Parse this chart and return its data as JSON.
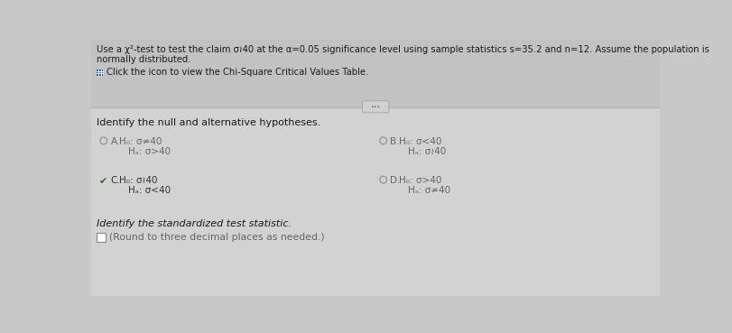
{
  "bg_top": "#c8c8c8",
  "bg_bottom": "#d8d8d8",
  "title_line1": "Use a χ²-test to test the claim σ≀40 at the α=0.05 significance level using sample statistics s=35.2 and n=12. Assume the population is",
  "title_line2": "normally distributed.",
  "icon_text": "Click the icon to view the Chi-Square Critical Values Table.",
  "section1": "Identify the null and alternative hypotheses.",
  "optA_label": "A.",
  "optA_h0": "H₀: σ≄40",
  "optA_ha": "Hₐ: σ>40",
  "optB_label": "B.",
  "optB_h0": "H₀: σ<40",
  "optB_ha": "Hₐ: σ≀40",
  "optC_label": "C.",
  "optC_h0": "H₀: σ≀40",
  "optC_ha": "Hₐ: σ<40",
  "optD_label": "D.",
  "optD_h0": "H₀: σ>40",
  "optD_ha": "Hₐ: σ≄40",
  "section2": "Identify the standardized test statistic.",
  "answer_box_text": "(Round to three decimal places as needed.)",
  "text_dark": "#1a1a1a",
  "text_gray": "#666666",
  "text_medium": "#333333",
  "radio_color": "#999999",
  "check_color": "#2a6e2a",
  "sep_color": "#b0b0b0",
  "btn_bg": "#d0d0d0",
  "btn_border": "#aaaaaa"
}
